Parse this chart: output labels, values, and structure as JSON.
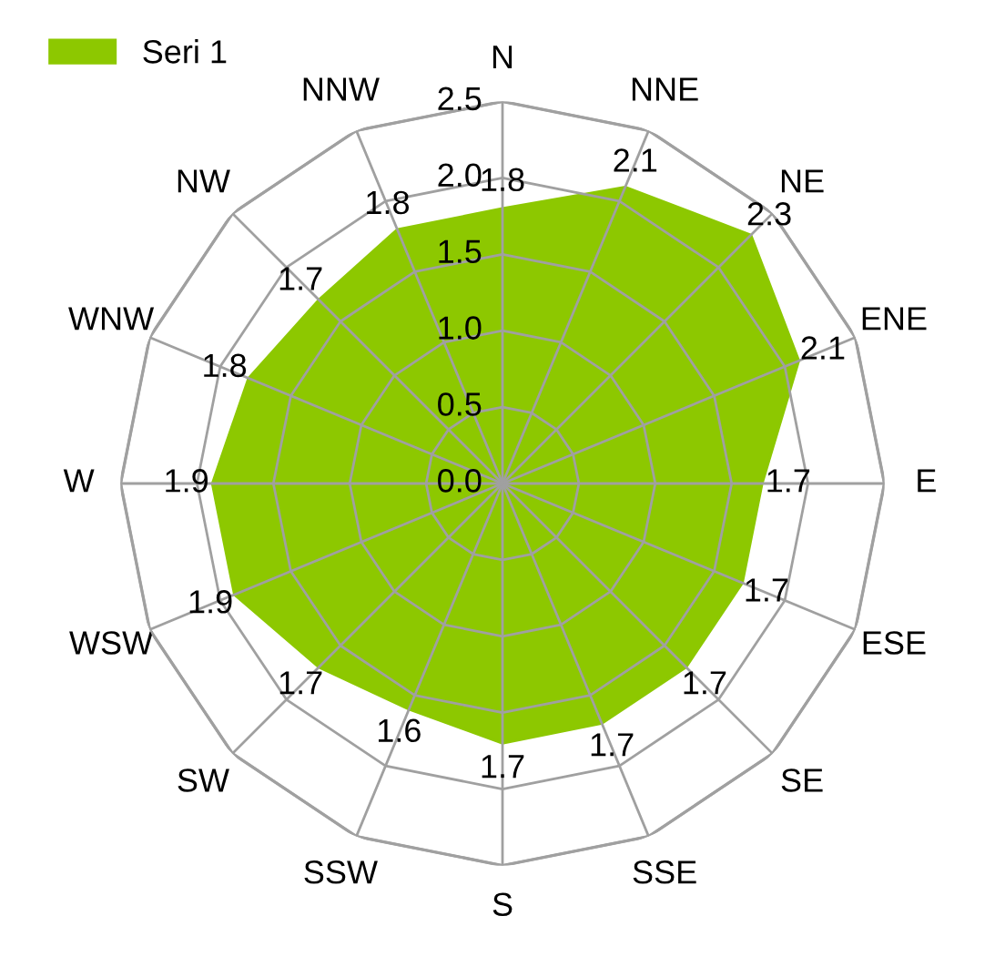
{
  "chart_data": {
    "type": "radar",
    "categories": [
      "N",
      "NNE",
      "NE",
      "ENE",
      "E",
      "ESE",
      "SE",
      "SSE",
      "S",
      "SSW",
      "SW",
      "WSW",
      "W",
      "WNW",
      "NW",
      "NNW"
    ],
    "series": [
      {
        "name": "Seri 1",
        "color": "#8dc800",
        "values": [
          1.8,
          2.1,
          2.3,
          2.1,
          1.7,
          1.7,
          1.7,
          1.7,
          1.7,
          1.6,
          1.7,
          1.9,
          1.9,
          1.8,
          1.7,
          1.8
        ]
      }
    ],
    "ylim": [
      0,
      2.5
    ],
    "yticks": [
      {
        "value": 0,
        "label": "0.0"
      },
      0.5,
      {
        "value": 1,
        "label": "1.0"
      },
      1.5,
      {
        "value": 2,
        "label": "2.0"
      },
      2.5
    ],
    "grid": true,
    "legend": "top left",
    "data_labels": true
  }
}
